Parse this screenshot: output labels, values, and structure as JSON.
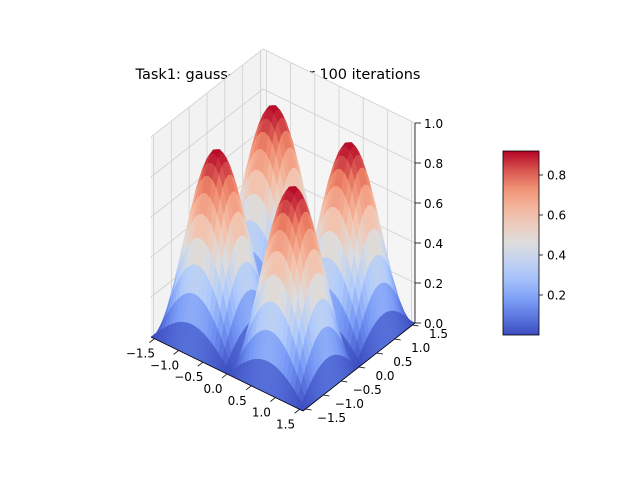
{
  "chart_data": {
    "type": "surface3d",
    "title": "Task1: gauss-seidel after 100 iterations",
    "colormap": "coolwarm",
    "colormap_colors": [
      "#3b4cc0",
      "#7396f5",
      "#b0cbfc",
      "#dddddd",
      "#f6bfa6",
      "#ee8468",
      "#b40426"
    ],
    "x": {
      "label": "",
      "range": [
        -1.5708,
        1.5708
      ],
      "ticks": [
        -1.5,
        -1.0,
        -0.5,
        0.0,
        0.5,
        1.0,
        1.5
      ],
      "tick_labels": [
        "−1.5",
        "−1.0",
        "−0.5",
        "0.0",
        "0.5",
        "1.0",
        "1.5"
      ]
    },
    "y": {
      "label": "",
      "range": [
        -1.5708,
        1.5708
      ],
      "ticks": [
        -1.5,
        -1.0,
        -0.5,
        0.0,
        0.5,
        1.0,
        1.5
      ],
      "tick_labels": [
        "−1.5",
        "−1.0",
        "−0.5",
        "0.0",
        "0.5",
        "1.0",
        "1.5"
      ]
    },
    "z": {
      "label": "",
      "range": [
        0.0,
        1.0
      ],
      "ticks": [
        0.0,
        0.2,
        0.4,
        0.6,
        0.8,
        1.0
      ],
      "tick_labels": [
        "0.0",
        "0.2",
        "0.4",
        "0.6",
        "0.8",
        "1.0"
      ]
    },
    "colorbar": {
      "range": [
        0.0,
        0.92
      ],
      "ticks": [
        0.2,
        0.4,
        0.6,
        0.8
      ],
      "tick_labels": [
        "0.2",
        "0.4",
        "0.6",
        "0.8"
      ]
    },
    "surface": {
      "function": "|sin(2x) * cos(y)| style ridges",
      "grid_min": -1.5708,
      "grid_max": 1.5708,
      "peak_value": 0.92,
      "minimum_value": 0.0,
      "description_peaks": "four ridge peaks near (±0.8, ±0.8)"
    },
    "view": {
      "elevation_deg": 30,
      "azimuth_deg": -60
    },
    "grid": true
  }
}
